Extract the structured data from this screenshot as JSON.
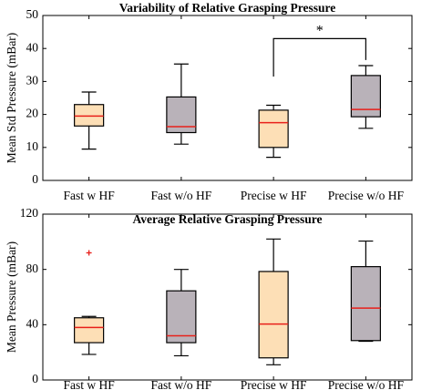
{
  "colors": {
    "box_with_hf": "#FDDFB6",
    "box_without_hf": "#B9B2B9",
    "median": "#E8201A",
    "outlier": "#E8201A",
    "line": "#000000"
  },
  "chart_data": [
    {
      "type": "box",
      "title": "Variability of Relative Grasping Pressure",
      "xlabel": "",
      "ylabel": "Mean Std Pressure (mBar)",
      "ylim": [
        0,
        50
      ],
      "yticks": [
        0,
        10,
        20,
        30,
        40,
        50
      ],
      "grid": false,
      "categories": [
        "Fast w HF",
        "Fast w/o HF",
        "Precise w HF",
        "Precise w/o HF"
      ],
      "boxes": [
        {
          "category": "Fast w HF",
          "whisker_low": 9.5,
          "q1": 16.5,
          "median": 19.5,
          "q3": 23,
          "whisker_high": 26.8,
          "outliers": [],
          "fill": "with_hf"
        },
        {
          "category": "Fast w/o HF",
          "whisker_low": 11,
          "q1": 14.5,
          "median": 16.3,
          "q3": 25.3,
          "whisker_high": 35.3,
          "outliers": [],
          "fill": "without_hf"
        },
        {
          "category": "Precise w HF",
          "whisker_low": 7,
          "q1": 10,
          "median": 17.5,
          "q3": 21.3,
          "whisker_high": 22.8,
          "outliers": [],
          "fill": "with_hf"
        },
        {
          "category": "Precise w/o HF",
          "whisker_low": 15.8,
          "q1": 19.3,
          "median": 21.5,
          "q3": 31.8,
          "whisker_high": 34.8,
          "outliers": [],
          "fill": "without_hf"
        }
      ],
      "significance": {
        "from": "Precise w HF",
        "to": "Precise w/o HF",
        "label": "*",
        "bar_y": 43,
        "left_drop_to": 31.5,
        "right_drop_to": 36.5
      }
    },
    {
      "type": "box",
      "title": "Average Relative Grasping Pressure",
      "xlabel": "",
      "ylabel": "Mean Pressure (mBar)",
      "ylim": [
        0,
        120
      ],
      "yticks": [
        0,
        40,
        80,
        120
      ],
      "grid": false,
      "categories": [
        "Fast w HF",
        "Fast w/o HF",
        "Precise w HF",
        "Precise w/o HF"
      ],
      "boxes": [
        {
          "category": "Fast w HF",
          "whisker_low": 18.5,
          "q1": 27,
          "median": 38,
          "q3": 45,
          "whisker_high": 46,
          "outliers": [
            92
          ],
          "fill": "with_hf"
        },
        {
          "category": "Fast w/o HF",
          "whisker_low": 17.5,
          "q1": 27,
          "median": 32,
          "q3": 64.5,
          "whisker_high": 80,
          "outliers": [],
          "fill": "without_hf"
        },
        {
          "category": "Precise w HF",
          "whisker_low": 11,
          "q1": 16,
          "median": 40.5,
          "q3": 78.5,
          "whisker_high": 102,
          "outliers": [],
          "fill": "with_hf"
        },
        {
          "category": "Precise w/o HF",
          "whisker_low": 28,
          "q1": 28.5,
          "median": 52,
          "q3": 82,
          "whisker_high": 100.5,
          "outliers": [],
          "fill": "without_hf"
        }
      ]
    }
  ]
}
